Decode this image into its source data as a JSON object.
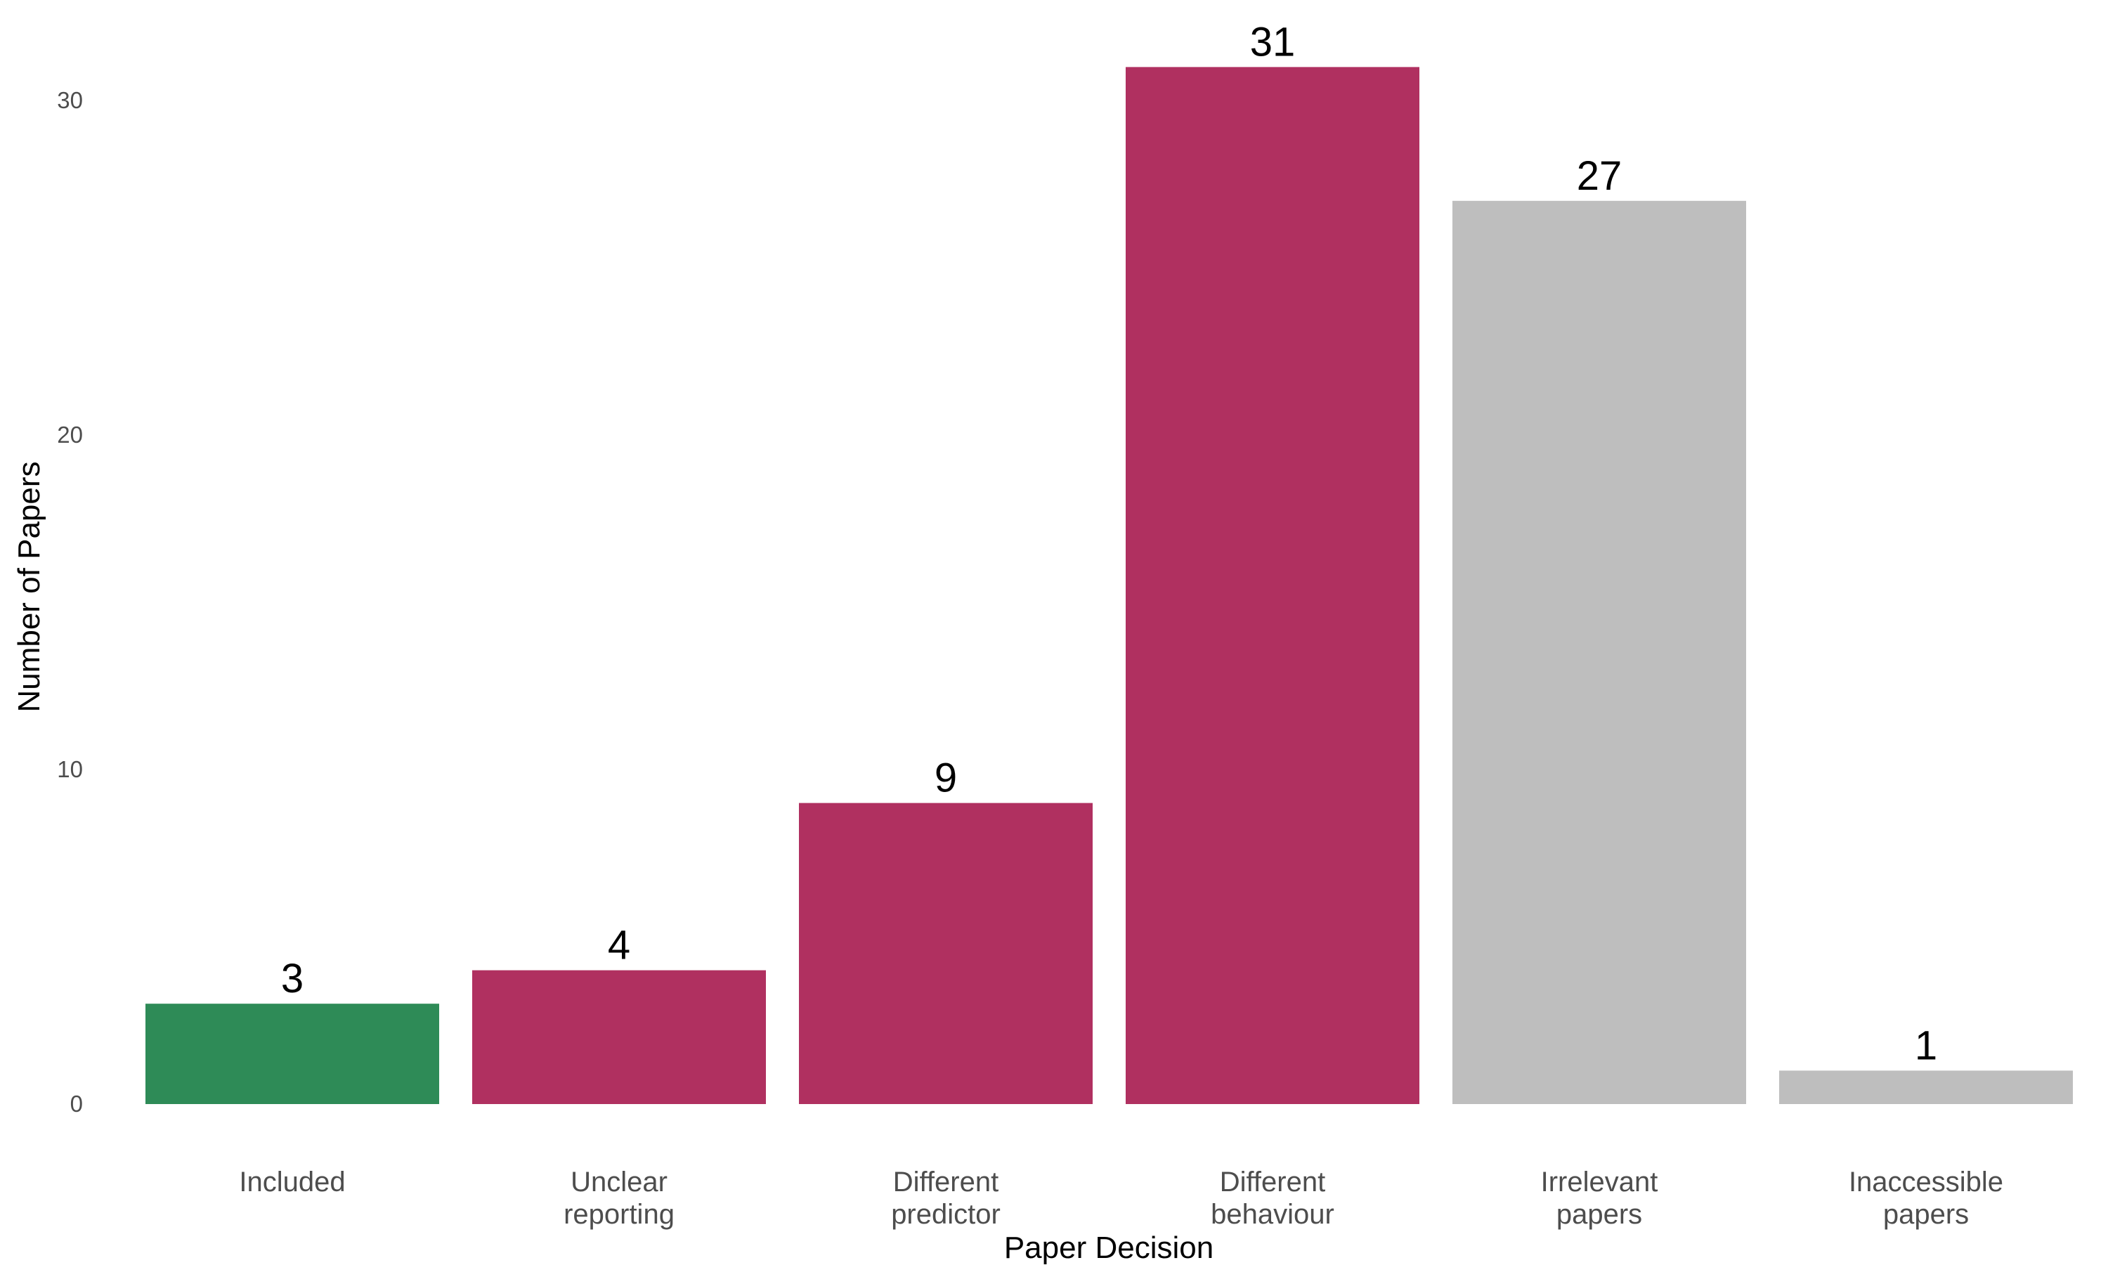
{
  "chart_data": {
    "type": "bar",
    "xlabel": "Paper Decision",
    "ylabel": "Number of Papers",
    "ylim": [
      0,
      32
    ],
    "yticks": [
      0,
      10,
      20,
      30
    ],
    "grid": false,
    "legend": "none",
    "categories": [
      [
        "Included"
      ],
      [
        "Unclear",
        "reporting"
      ],
      [
        "Different",
        "predictor"
      ],
      [
        "Different",
        "behaviour"
      ],
      [
        "Irrelevant",
        "papers"
      ],
      [
        "Inaccessible",
        "papers"
      ]
    ],
    "values": [
      3,
      4,
      9,
      31,
      27,
      1
    ],
    "colors": [
      "#2e8b57",
      "#b03060",
      "#b03060",
      "#b03060",
      "#bebebe",
      "#bebebe"
    ]
  }
}
